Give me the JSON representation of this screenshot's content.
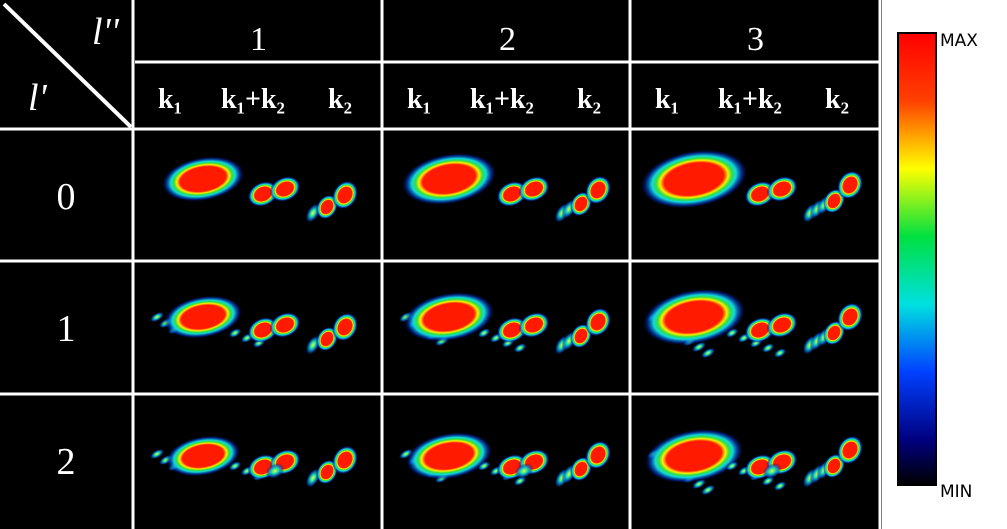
{
  "corner": {
    "top": "l''",
    "bottom": "l'"
  },
  "columns": [
    {
      "label": "1",
      "subheaders": [
        "k₁",
        "k₁+k₂",
        "k₂"
      ]
    },
    {
      "label": "2",
      "subheaders": [
        "k₁",
        "k₁+k₂",
        "k₂"
      ]
    },
    {
      "label": "3",
      "subheaders": [
        "k₁",
        "k₁+k₂",
        "k₂"
      ]
    }
  ],
  "rows": [
    "0",
    "1",
    "2"
  ],
  "colorbar": {
    "max": "MAX",
    "min": "MIN"
  }
}
